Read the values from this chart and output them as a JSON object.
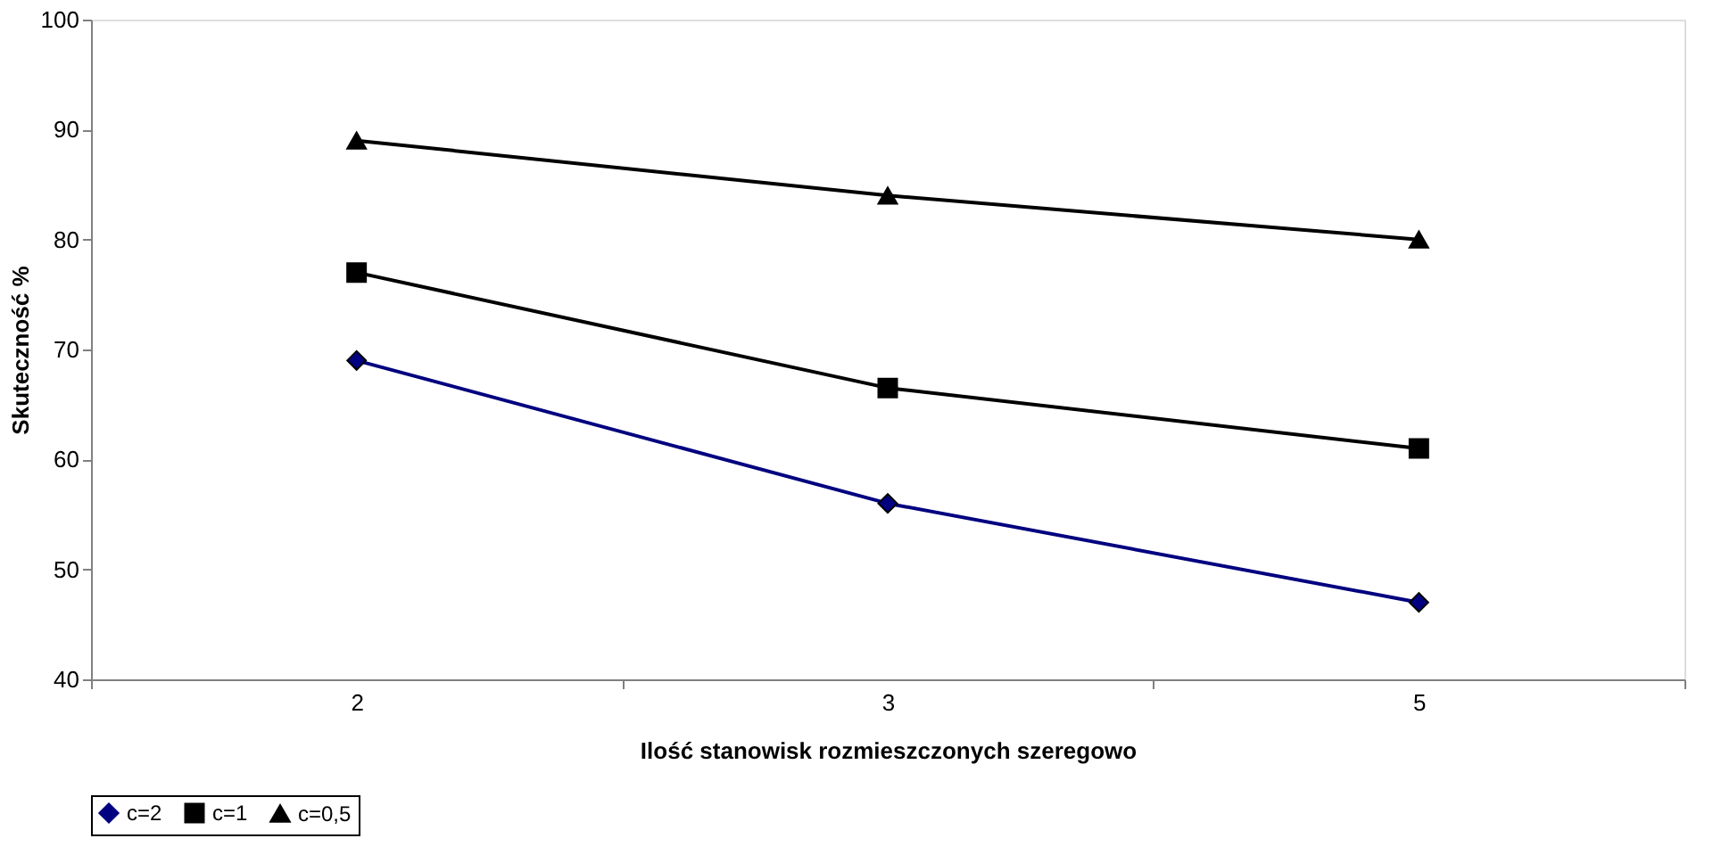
{
  "chart_data": {
    "type": "line",
    "xlabel": "Ilość stanowisk rozmieszczonych szeregowo",
    "ylabel": "Skuteczność %",
    "categories": [
      "2",
      "3",
      "5"
    ],
    "series": [
      {
        "name": "c=2",
        "color": "#000080",
        "marker": "diamond",
        "values": [
          69,
          56,
          47
        ]
      },
      {
        "name": "c=1",
        "color": "#000000",
        "marker": "square",
        "values": [
          77,
          66.5,
          61
        ]
      },
      {
        "name": "c=0,5",
        "color": "#000000",
        "marker": "triangle",
        "values": [
          89,
          84,
          80
        ]
      }
    ],
    "ylim": [
      40,
      100
    ],
    "yticks": [
      40,
      50,
      60,
      70,
      80,
      90,
      100
    ],
    "grid": false,
    "legend": "bottom"
  }
}
